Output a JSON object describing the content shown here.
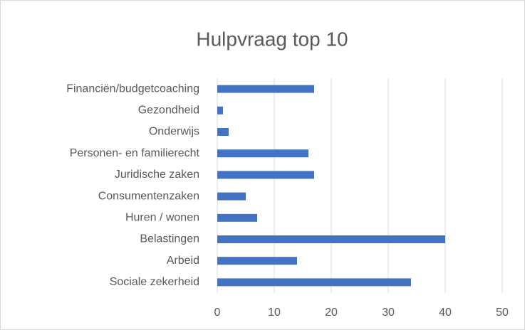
{
  "chart_data": {
    "type": "bar",
    "orientation": "horizontal",
    "title": "Hulpvraag top 10",
    "categories": [
      "Financiën/budgetcoaching",
      "Gezondheid",
      "Onderwijs",
      "Personen- en familierecht",
      "Juridische zaken",
      "Consumentenzaken",
      "Huren / wonen",
      "Belastingen",
      "Arbeid",
      "Sociale zekerheid"
    ],
    "values": [
      17,
      1,
      2,
      16,
      17,
      5,
      7,
      40,
      14,
      34
    ],
    "color": "#4472c4",
    "xlim": [
      0,
      50
    ],
    "xticks": [
      0,
      10,
      20,
      30,
      40,
      50
    ],
    "grid": true
  }
}
